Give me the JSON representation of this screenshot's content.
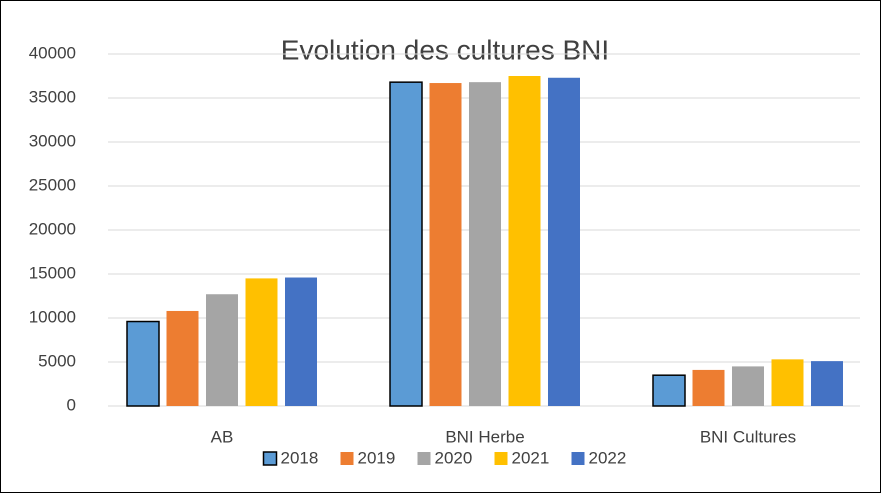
{
  "chart_data": {
    "type": "bar",
    "title": "Evolution des cultures BNI",
    "categories": [
      "AB",
      "BNI Herbe",
      "BNI Cultures"
    ],
    "series": [
      {
        "name": "2018",
        "color": "#5b9bd5",
        "edgecolor": "#000000",
        "values": [
          9600,
          36800,
          3500
        ]
      },
      {
        "name": "2019",
        "color": "#ed7d31",
        "values": [
          10800,
          36700,
          4100
        ]
      },
      {
        "name": "2020",
        "color": "#a5a5a5",
        "values": [
          12700,
          36800,
          4500
        ]
      },
      {
        "name": "2021",
        "color": "#ffc000",
        "values": [
          14500,
          37500,
          5300
        ]
      },
      {
        "name": "2022",
        "color": "#4472c4",
        "values": [
          14600,
          37300,
          5100
        ]
      }
    ],
    "ylim": [
      0,
      40000
    ],
    "yticks": [
      0,
      5000,
      10000,
      15000,
      20000,
      25000,
      30000,
      35000,
      40000
    ],
    "grid": true,
    "legend": "bottom"
  }
}
